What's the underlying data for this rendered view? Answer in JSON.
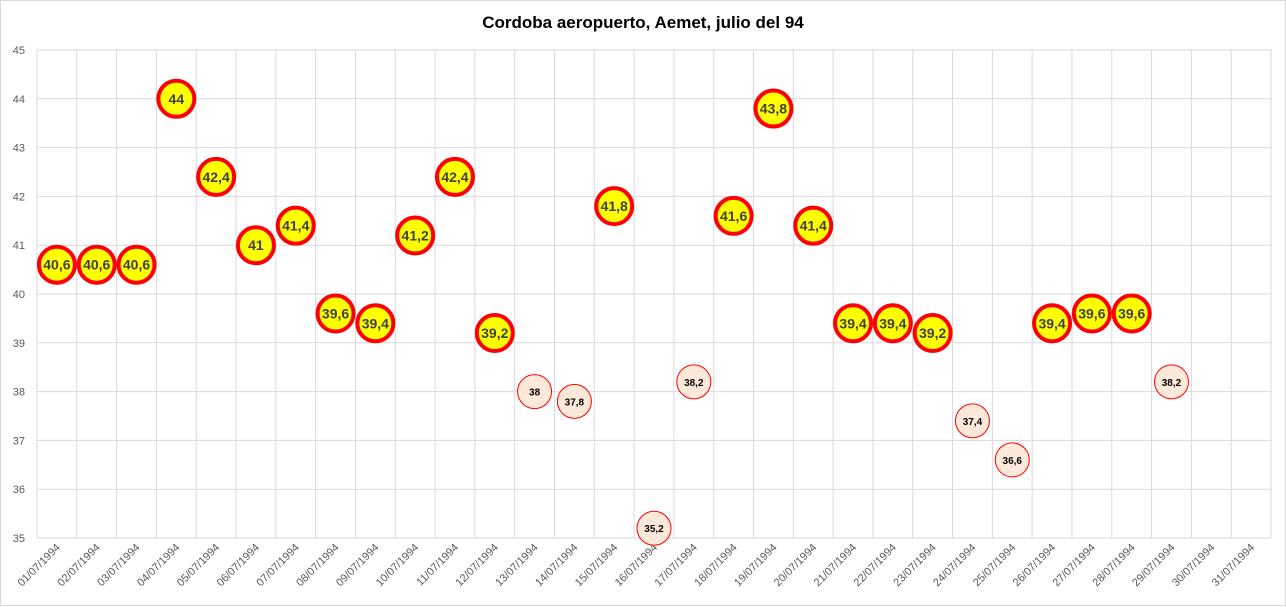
{
  "chart_data": {
    "type": "scatter",
    "title": "Cordoba aeropuerto, Aemet, julio del 94",
    "xlabel": "",
    "ylabel": "",
    "ylim": [
      35,
      45
    ],
    "yticks": [
      "35",
      "36",
      "37",
      "38",
      "39",
      "40",
      "41",
      "42",
      "43",
      "44",
      "45"
    ],
    "categories": [
      "01/07/1994",
      "02/07/1994",
      "03/07/1994",
      "04/07/1994",
      "05/07/1994",
      "06/07/1994",
      "07/07/1994",
      "08/07/1994",
      "09/07/1994",
      "10/07/1994",
      "11/07/1994",
      "12/07/1994",
      "13/07/1994",
      "14/07/1994",
      "15/07/1994",
      "16/07/1994",
      "17/07/1994",
      "18/07/1994",
      "19/07/1994",
      "20/07/1994",
      "21/07/1994",
      "22/07/1994",
      "23/07/1994",
      "24/07/1994",
      "25/07/1994",
      "26/07/1994",
      "27/07/1994",
      "28/07/1994",
      "29/07/1994",
      "30/07/1994",
      "31/07/1994"
    ],
    "grid": true,
    "series": [
      {
        "marker_fill": "#ffff00",
        "marker_edge": "#ff0000",
        "points": [
          {
            "x": "01/07/1994",
            "y": 40.6,
            "label": "40,6"
          },
          {
            "x": "02/07/1994",
            "y": 40.6,
            "label": "40,6"
          },
          {
            "x": "03/07/1994",
            "y": 40.6,
            "label": "40,6"
          },
          {
            "x": "04/07/1994",
            "y": 44,
            "label": "44"
          },
          {
            "x": "05/07/1994",
            "y": 42.4,
            "label": "42,4"
          },
          {
            "x": "06/07/1994",
            "y": 41,
            "label": "41"
          },
          {
            "x": "07/07/1994",
            "y": 41.4,
            "label": "41,4"
          },
          {
            "x": "08/07/1994",
            "y": 39.6,
            "label": "39,6"
          },
          {
            "x": "09/07/1994",
            "y": 39.4,
            "label": "39,4"
          },
          {
            "x": "10/07/1994",
            "y": 41.2,
            "label": "41,2"
          },
          {
            "x": "11/07/1994",
            "y": 42.4,
            "label": "42,4"
          },
          {
            "x": "12/07/1994",
            "y": 39.2,
            "label": "39,2"
          },
          {
            "x": "15/07/1994",
            "y": 41.8,
            "label": "41,8"
          },
          {
            "x": "18/07/1994",
            "y": 41.6,
            "label": "41,6"
          },
          {
            "x": "19/07/1994",
            "y": 43.8,
            "label": "43,8"
          },
          {
            "x": "20/07/1994",
            "y": 41.4,
            "label": "41,4"
          },
          {
            "x": "21/07/1994",
            "y": 39.4,
            "label": "39,4"
          },
          {
            "x": "22/07/1994",
            "y": 39.4,
            "label": "39,4"
          },
          {
            "x": "23/07/1994",
            "y": 39.2,
            "label": "39,2"
          },
          {
            "x": "26/07/1994",
            "y": 39.4,
            "label": "39,4"
          },
          {
            "x": "27/07/1994",
            "y": 39.6,
            "label": "39,6"
          },
          {
            "x": "28/07/1994",
            "y": 39.6,
            "label": "39,6"
          }
        ]
      },
      {
        "marker_fill": "#fde9d9",
        "marker_edge": "#ff0000",
        "points": [
          {
            "x": "13/07/1994",
            "y": 38,
            "label": "38"
          },
          {
            "x": "14/07/1994",
            "y": 37.8,
            "label": "37,8"
          },
          {
            "x": "16/07/1994",
            "y": 35.2,
            "label": "35,2"
          },
          {
            "x": "17/07/1994",
            "y": 38.2,
            "label": "38,2"
          },
          {
            "x": "24/07/1994",
            "y": 37.4,
            "label": "37,4"
          },
          {
            "x": "25/07/1994",
            "y": 36.6,
            "label": "36,6"
          },
          {
            "x": "29/07/1994",
            "y": 38.2,
            "label": "38,2"
          }
        ]
      }
    ]
  },
  "colors": {
    "grid": "#d9d9d9",
    "tick_text": "#595959"
  }
}
